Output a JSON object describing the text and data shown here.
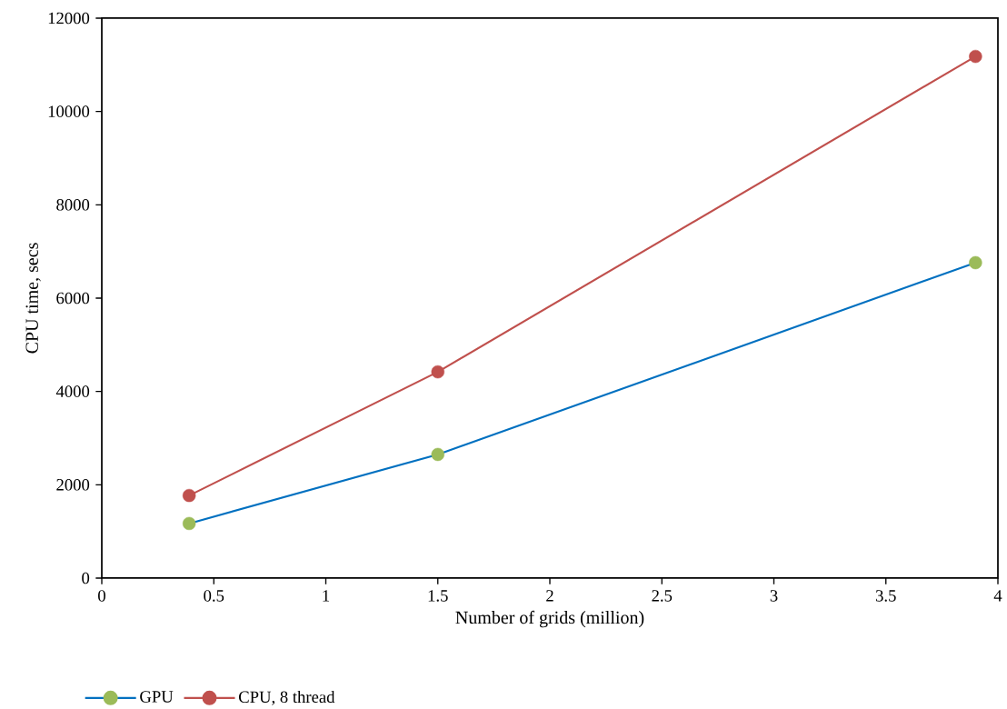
{
  "chart_data": {
    "type": "line",
    "xlabel": "Number of grids (million)",
    "ylabel": "CPU time, secs",
    "xlim": [
      0,
      4
    ],
    "xticks": [
      0,
      0.5,
      1,
      1.5,
      2,
      2.5,
      3,
      3.5,
      4
    ],
    "ylim": [
      0,
      12000
    ],
    "yticks": [
      0,
      2000,
      4000,
      6000,
      8000,
      10000,
      12000
    ],
    "x": [
      0.39,
      1.5,
      3.9
    ],
    "series": [
      {
        "name": "GPU",
        "color": "#0070c0",
        "colors": [
          "#9bbb59",
          "#9bbb59",
          "#9bbb59"
        ],
        "values": [
          1170,
          2650,
          6760
        ]
      },
      {
        "name": "CPU, 8 thread",
        "color": "#c0504d",
        "colors": [
          "#c0504d",
          "#c0504d",
          "#c0504d"
        ],
        "values": [
          1770,
          4420,
          11180
        ]
      }
    ],
    "grid": false,
    "legend": "bottom left",
    "marker": "circle",
    "line_style": "solid"
  }
}
